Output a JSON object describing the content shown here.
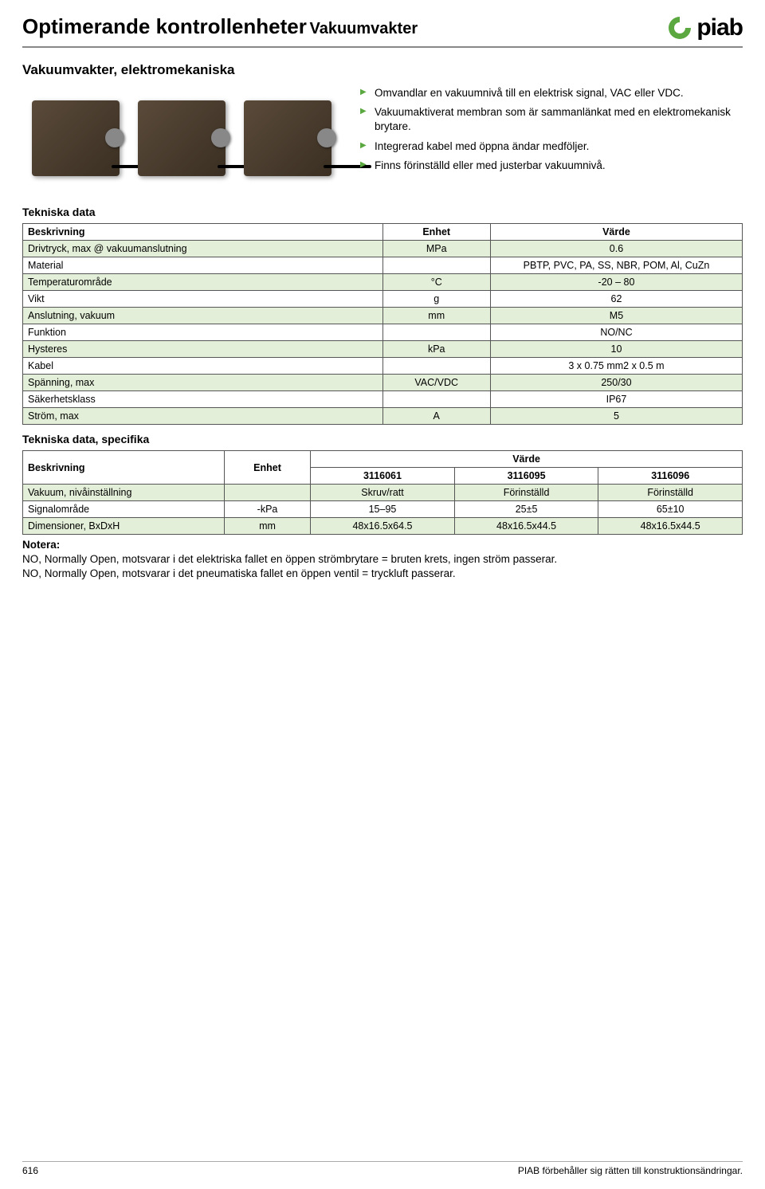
{
  "header": {
    "title_main": "Optimerande kontrollenheter",
    "title_sub": "Vakuumvakter",
    "logo_text": "piab",
    "logo_color": "#5aa83f"
  },
  "subtitle": "Vakuumvakter, elektromekaniska",
  "bullets": [
    "Omvandlar en vakuumnivå till en elektrisk signal, VAC eller VDC.",
    "Vakuumaktiverat membran som är sammanlänkat med en elektromekanisk brytare.",
    "Integrerad kabel med öppna ändar medföljer.",
    "Finns förinställd eller med justerbar vakuumnivå."
  ],
  "tech_data": {
    "heading": "Tekniska data",
    "col_desc": "Beskrivning",
    "col_unit": "Enhet",
    "col_value": "Värde",
    "rows": [
      {
        "desc": "Drivtryck, max @ vakuumanslutning",
        "unit": "MPa",
        "value": "0.6",
        "alt": true
      },
      {
        "desc": "Material",
        "unit": "",
        "value": "PBTP, PVC, PA, SS, NBR, POM, Al, CuZn",
        "alt": false
      },
      {
        "desc": "Temperaturområde",
        "unit": "°C",
        "value": "-20 – 80",
        "alt": true
      },
      {
        "desc": "Vikt",
        "unit": "g",
        "value": "62",
        "alt": false
      },
      {
        "desc": "Anslutning, vakuum",
        "unit": "mm",
        "value": "M5",
        "alt": true
      },
      {
        "desc": "Funktion",
        "unit": "",
        "value": "NO/NC",
        "alt": false
      },
      {
        "desc": "Hysteres",
        "unit": "kPa",
        "value": "10",
        "alt": true
      },
      {
        "desc": "Kabel",
        "unit": "",
        "value": "3 x 0.75 mm2 x 0.5 m",
        "alt": false
      },
      {
        "desc": "Spänning, max",
        "unit": "VAC/VDC",
        "value": "250/30",
        "alt": true
      },
      {
        "desc": "Säkerhetsklass",
        "unit": "",
        "value": "IP67",
        "alt": false
      },
      {
        "desc": "Ström, max",
        "unit": "A",
        "value": "5",
        "alt": true
      }
    ]
  },
  "tech_spec": {
    "heading": "Tekniska data, specifika",
    "col_desc": "Beskrivning",
    "col_unit": "Enhet",
    "col_value": "Värde",
    "model_cols": [
      "3116061",
      "3116095",
      "3116096"
    ],
    "rows": [
      {
        "desc": "Vakuum, nivåinställning",
        "unit": "",
        "vals": [
          "Skruv/ratt",
          "Förinställd",
          "Förinställd"
        ],
        "alt": true
      },
      {
        "desc": "Signalområde",
        "unit": "-kPa",
        "vals": [
          "15–95",
          "25±5",
          "65±10"
        ],
        "alt": false
      },
      {
        "desc": "Dimensioner, BxDxH",
        "unit": "mm",
        "vals": [
          "48x16.5x64.5",
          "48x16.5x44.5",
          "48x16.5x44.5"
        ],
        "alt": true
      }
    ]
  },
  "notes": {
    "head": "Notera:",
    "lines": [
      "NO, Normally Open, motsvarar i det elektriska fallet en öppen strömbrytare = bruten krets, ingen ström passerar.",
      "NO, Normally Open, motsvarar i det pneumatiska fallet en öppen ventil = tryckluft passerar."
    ]
  },
  "footer": {
    "page": "616",
    "text": "PIAB förbehåller sig rätten till konstruktionsändringar."
  },
  "colors": {
    "alt_row": "#e4efd9",
    "accent": "#5aa83f",
    "border": "#555555"
  }
}
